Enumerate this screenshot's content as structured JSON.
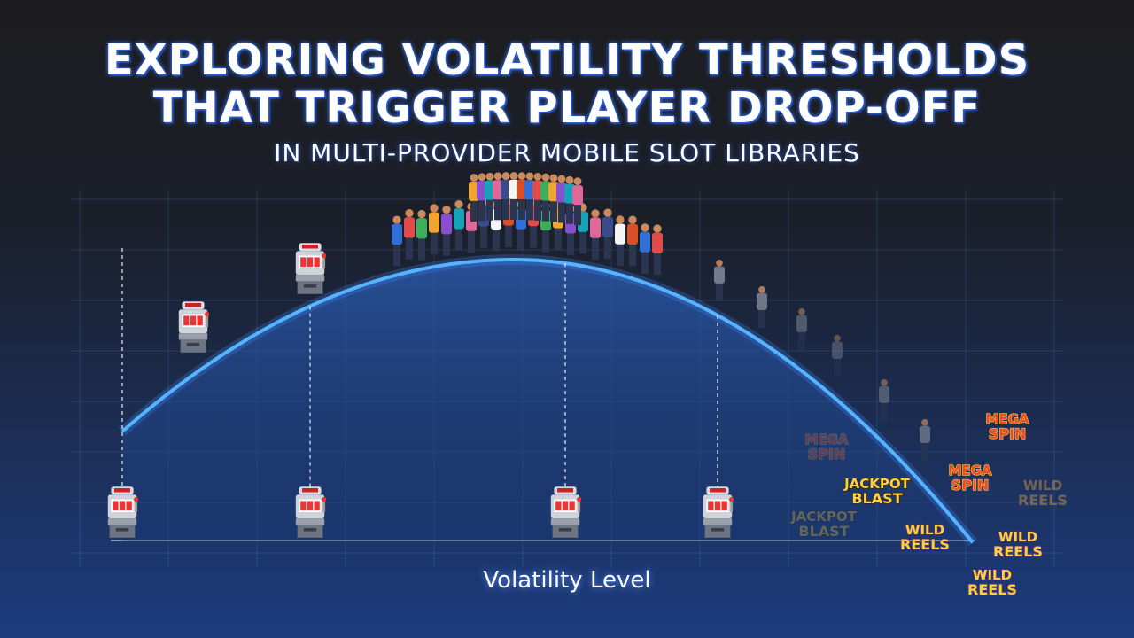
{
  "header": {
    "title": [
      "EXPLORING VOLATILITY THRESHOLDS",
      "THAT TRIGGER PLAYER DROP-OFF"
    ],
    "subtitle": "IN MULTI-PROVIDER MOBILE SLOT LIBRARIES"
  },
  "axis_label": "Volatility Level",
  "logos": [
    {
      "top": "MEGA",
      "bottom": "SPIN"
    },
    {
      "top": "MEGA",
      "bottom": "SPIN"
    },
    {
      "top": "MEGA",
      "bottom": "SPIN"
    },
    {
      "top": "JACKPOT",
      "bottom": "BLAST"
    },
    {
      "top": "JACKPOT",
      "bottom": "BLAST"
    },
    {
      "top": "WILD",
      "bottom": "REELS"
    },
    {
      "top": "WILD",
      "bottom": "REELS"
    },
    {
      "top": "WILD",
      "bottom": "REELS"
    },
    {
      "top": "WILD",
      "bottom": "REELS"
    }
  ]
}
